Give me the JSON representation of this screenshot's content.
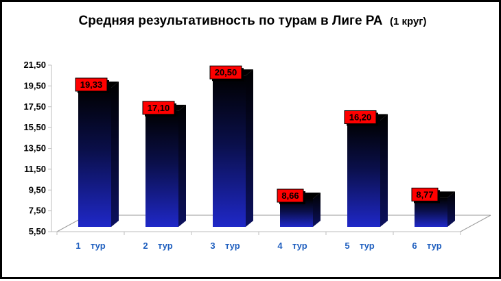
{
  "chart_data": {
    "type": "bar",
    "title": "Средняя результативность по турам в Лиге РА",
    "title_suffix": "(1 круг)",
    "categories": [
      "1    тур",
      "2    тур",
      "3    тур",
      "4    тур",
      "5    тур",
      "6    тур"
    ],
    "values": [
      19.33,
      17.1,
      20.5,
      8.66,
      16.2,
      8.77
    ],
    "value_labels": [
      "19,33",
      "17,10",
      "20,50",
      "8,66",
      "16,20",
      "8,77"
    ],
    "y_ticks": [
      "5,50",
      "7,50",
      "9,50",
      "11,50",
      "13,50",
      "15,50",
      "17,50",
      "19,50",
      "21,50"
    ],
    "ylim": [
      5.5,
      21.5
    ],
    "grid": false,
    "legend": "none",
    "colors": {
      "bar_top": "#000000",
      "bar_bottom": "#1f28c8",
      "label_bg": "#ff0000",
      "label_text": "#000000",
      "x_labels": "#1f5fbf"
    }
  }
}
